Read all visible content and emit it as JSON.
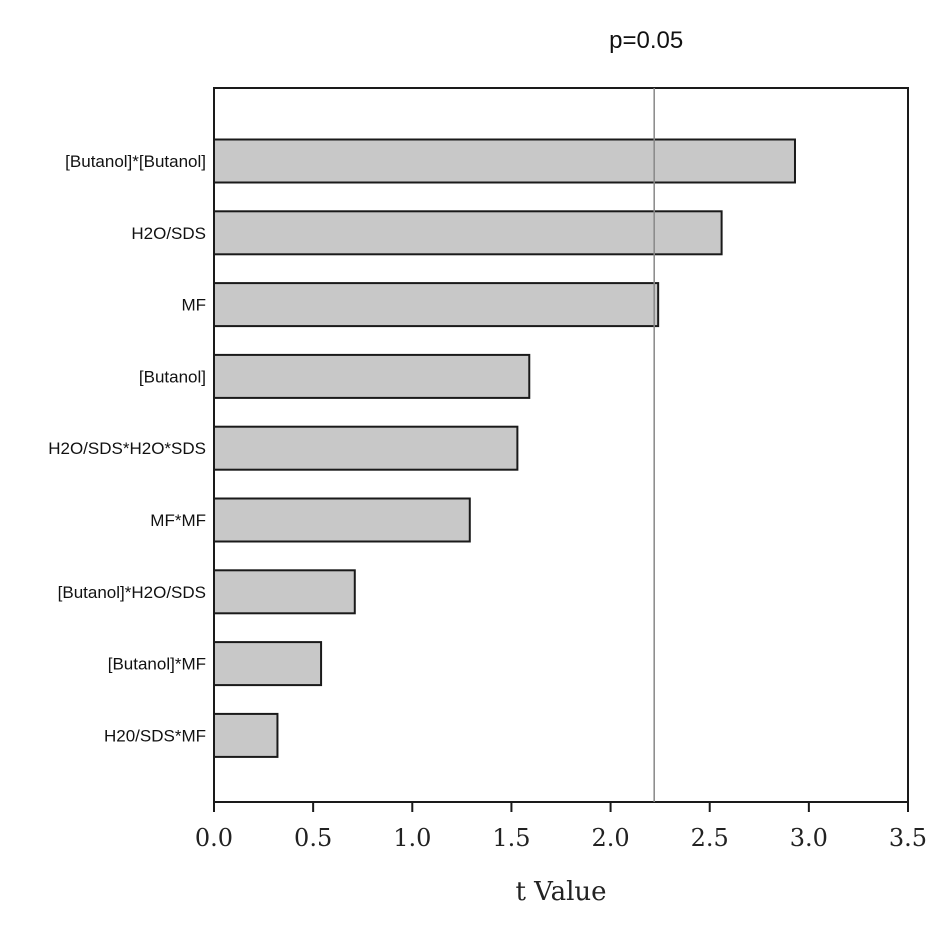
{
  "chart_data": {
    "type": "bar",
    "orientation": "horizontal",
    "categories": [
      "[Butanol]*[Butanol]",
      "H2O/SDS",
      "MF",
      "[Butanol]",
      "H2O/SDS*H2O*SDS",
      "MF*MF",
      "[Butanol]*H2O/SDS",
      "[Butanol]*MF",
      "H20/SDS*MF"
    ],
    "values": [
      2.93,
      2.56,
      2.24,
      1.59,
      1.53,
      1.29,
      0.71,
      0.54,
      0.32
    ],
    "xlabel": "t Value",
    "ylabel": "",
    "xlim": [
      0,
      3.5
    ],
    "xticks": [
      "0.0",
      "0.5",
      "1.0",
      "1.5",
      "2.0",
      "2.5",
      "3.0",
      "3.5"
    ],
    "reference_line": {
      "value": 2.22,
      "label": "p=0.05"
    },
    "grid": false,
    "legend": "none",
    "colors": {
      "bar_fill": "#c8c8c8",
      "bar_stroke": "#1a1a1a",
      "reference_line": "#888888",
      "axis": "#1a1a1a"
    }
  }
}
